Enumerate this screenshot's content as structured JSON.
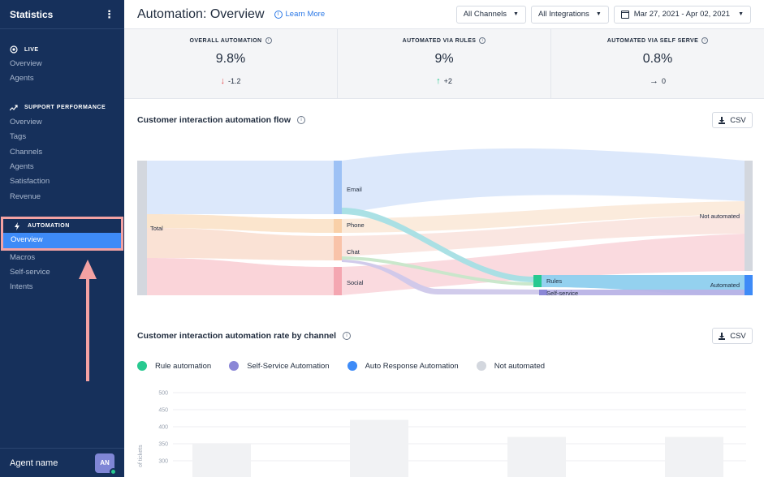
{
  "sidebar": {
    "title": "Statistics",
    "sections": [
      {
        "header": "LIVE",
        "icon": "live-icon",
        "items": [
          "Overview",
          "Agents"
        ]
      },
      {
        "header": "SUPPORT PERFORMANCE",
        "icon": "trend-icon",
        "items": [
          "Overview",
          "Tags",
          "Channels",
          "Agents",
          "Satisfaction",
          "Revenue"
        ]
      },
      {
        "header": "AUTOMATION",
        "icon": "bolt-icon",
        "items": [
          "Overview",
          "Macros",
          "Self-service",
          "Intents"
        ]
      }
    ],
    "active_item": "Overview",
    "footer": {
      "agent_name": "Agent name",
      "avatar_initials": "AN"
    }
  },
  "topbar": {
    "title": "Automation: Overview",
    "learn_more": "Learn More",
    "filters": {
      "channels": "All Channels",
      "integrations": "All Integrations",
      "date_range": "Mar 27, 2021 - Apr 02, 2021"
    }
  },
  "kpis": [
    {
      "label": "OVERALL AUTOMATION",
      "value": "9.8%",
      "delta": "-1.2",
      "trend": "down"
    },
    {
      "label": "AUTOMATED VIA RULES",
      "value": "9%",
      "delta": "+2",
      "trend": "up"
    },
    {
      "label": "AUTOMATED VIA SELF SERVE",
      "value": "0.8%",
      "delta": "0",
      "trend": "flat"
    }
  ],
  "colors": {
    "down": "#e5484d",
    "up": "#28c990",
    "flat": "#1f2b3d",
    "rule": "#28c990",
    "self_service": "#8b87d6",
    "auto_response": "#3e8bf7",
    "not_automated": "#d3d7de"
  },
  "flow": {
    "title": "Customer interaction automation flow",
    "csv_label": "CSV",
    "nodes": {
      "total": "Total",
      "email": "Email",
      "phone": "Phone",
      "chat": "Chat",
      "social": "Social",
      "rules": "Rules",
      "self_service": "Self-service",
      "not_automated": "Not automated",
      "automated": "Automated"
    }
  },
  "rate": {
    "title": "Customer interaction automation rate by channel",
    "csv_label": "CSV",
    "legend": [
      "Rule automation",
      "Self-Service Automation",
      "Auto Response Automation",
      "Not automated"
    ]
  },
  "chart_data": {
    "type": "bar",
    "ylabel": "of tickets",
    "y_ticks": [
      500,
      450,
      400,
      350,
      300
    ],
    "ylim": [
      290,
      500
    ],
    "grid": true,
    "series": [
      {
        "name": "Not automated",
        "values": [
          350,
          420,
          370,
          370
        ]
      }
    ]
  }
}
